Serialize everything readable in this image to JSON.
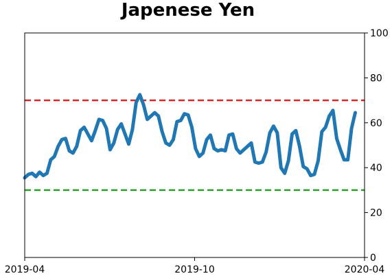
{
  "chart_data": {
    "type": "line",
    "title": "Japenese Yen",
    "xlabel": "",
    "ylabel": "",
    "x_ticks": [
      "2019-04",
      "2019-10",
      "2020-04"
    ],
    "x_range": [
      "2019-04-01",
      "2020-04-01"
    ],
    "ylim": [
      0,
      100
    ],
    "y_ticks": [
      "0",
      "20",
      "40",
      "60",
      "80",
      "100"
    ],
    "y_axis_side": "right",
    "grid": false,
    "legend": "none",
    "reference_lines": [
      {
        "y": 70,
        "color": "#d62728",
        "style": "dashed"
      },
      {
        "y": 30,
        "color": "#2ca02c",
        "style": "dashed"
      }
    ],
    "series": [
      {
        "color": "#1f77b4",
        "x": [
          "2019-04-01",
          "2019-04-05",
          "2019-04-09",
          "2019-04-13",
          "2019-04-17",
          "2019-04-21",
          "2019-04-25",
          "2019-04-29",
          "2019-05-03",
          "2019-05-07",
          "2019-05-11",
          "2019-05-15",
          "2019-05-19",
          "2019-05-23",
          "2019-05-27",
          "2019-05-31",
          "2019-06-04",
          "2019-06-08",
          "2019-06-12",
          "2019-06-16",
          "2019-06-20",
          "2019-06-24",
          "2019-06-28",
          "2019-07-02",
          "2019-07-06",
          "2019-07-10",
          "2019-07-14",
          "2019-07-18",
          "2019-07-22",
          "2019-07-26",
          "2019-07-30",
          "2019-08-03",
          "2019-08-07",
          "2019-08-11",
          "2019-08-15",
          "2019-08-19",
          "2019-08-23",
          "2019-08-27",
          "2019-08-31",
          "2019-09-04",
          "2019-09-08",
          "2019-09-12",
          "2019-09-16",
          "2019-09-20",
          "2019-09-24",
          "2019-09-28",
          "2019-10-02",
          "2019-10-06",
          "2019-10-10",
          "2019-10-14",
          "2019-10-18",
          "2019-10-22",
          "2019-10-26",
          "2019-10-30",
          "2019-11-03",
          "2019-11-07",
          "2019-11-11",
          "2019-11-15",
          "2019-11-19",
          "2019-11-23",
          "2019-11-27",
          "2019-12-01",
          "2019-12-05",
          "2019-12-09",
          "2019-12-13",
          "2019-12-17",
          "2019-12-21",
          "2019-12-25",
          "2019-12-29",
          "2020-01-02",
          "2020-01-06",
          "2020-01-10",
          "2020-01-14",
          "2020-01-18",
          "2020-01-22",
          "2020-01-26",
          "2020-01-30",
          "2020-02-03",
          "2020-02-07",
          "2020-02-11",
          "2020-02-15",
          "2020-02-19",
          "2020-02-23",
          "2020-02-27",
          "2020-03-02",
          "2020-03-06",
          "2020-03-10",
          "2020-03-14",
          "2020-03-18",
          "2020-03-22"
        ],
        "values": [
          35.5,
          37,
          37.5,
          36,
          38,
          36.5,
          37.5,
          43.5,
          45,
          49.5,
          52.5,
          53,
          47.5,
          46.5,
          49.5,
          56.5,
          58,
          55,
          52,
          56.5,
          61.5,
          61,
          57.5,
          48,
          51,
          57,
          59.5,
          55,
          50.5,
          57,
          69,
          72.5,
          68,
          61.5,
          63,
          64.5,
          63,
          56,
          51,
          50,
          52.5,
          60.5,
          61,
          64,
          63.5,
          58,
          48.5,
          45,
          46.5,
          52.5,
          54.5,
          48.5,
          47.5,
          48,
          47.5,
          54.5,
          55,
          48.5,
          46.5,
          48,
          49.5,
          51,
          42.5,
          42,
          42.5,
          47,
          55.5,
          58.5,
          55.5,
          40,
          37.5,
          43,
          55,
          56.5,
          49.5,
          40.5,
          39.5,
          36.5,
          37,
          43,
          56,
          58,
          63,
          65.5,
          53,
          48,
          43.5,
          43.5,
          57.5,
          64.5
        ]
      }
    ]
  }
}
